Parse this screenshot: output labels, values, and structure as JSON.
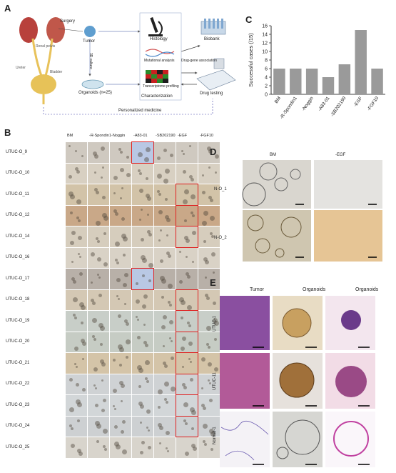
{
  "panels": {
    "a": {
      "letter": "A",
      "labels": {
        "surgery": "Surgery",
        "tumor": "Tumor",
        "culture": "3D culture",
        "organoids": "Organoids (n=25)",
        "histology": "Histology",
        "mutational": "Mutational analysis",
        "transcriptome": "Transcriptome profiling",
        "characterization": "Characterization",
        "biobank": "Biobank",
        "drug_gene": "Drug-gene association",
        "drug_testing": "Drug testing",
        "personalized": "Personalized medicine",
        "bladder": "Bladder",
        "renal_pelvis": "Renal pelvis",
        "ureter": "Ureter"
      }
    },
    "b": {
      "letter": "B",
      "columns": [
        "BM",
        "-R-Spondin1",
        "-Noggin",
        "-A83-01",
        "-SB202190",
        "-EGF",
        "-FGF10"
      ],
      "rows": [
        "UTUC-O_9",
        "UTUC-O_10",
        "UTUC-O_11",
        "UTUC-O_12",
        "UTUC-O_14",
        "UTUC-O_16",
        "UTUC-O_17",
        "UTUC-O_18",
        "UTUC-O_19",
        "UTUC-O_20",
        "UTUC-O_21",
        "UTUC-O_22",
        "UTUC-O_23",
        "UTUC-O_24",
        "UTUC-O_25"
      ]
    },
    "c": {
      "letter": "C",
      "chart_data": {
        "type": "bar",
        "categories": [
          "BM",
          "-R-Spondin1",
          "-Noggin",
          "-A83-01",
          "-SB202190",
          "-EGF",
          "-FGF10"
        ],
        "values": [
          6,
          6,
          6,
          4,
          7,
          15,
          6
        ],
        "ylabel": "Successful cases (/15)",
        "ylim": [
          0,
          16
        ],
        "yticks": [
          0,
          2,
          4,
          6,
          8,
          10,
          12,
          14,
          16
        ],
        "bar_color": "#9a9a9a"
      }
    },
    "d": {
      "letter": "D",
      "columns": [
        "BM",
        "-EGF"
      ],
      "rows": [
        "N-O_1",
        "N-O_2"
      ]
    },
    "e": {
      "letter": "E",
      "columns": [
        "Tumor",
        "Organoids",
        "Organoids"
      ],
      "rows": [
        "UTUC-1",
        "UTUC-11",
        "Normal-1"
      ]
    }
  }
}
